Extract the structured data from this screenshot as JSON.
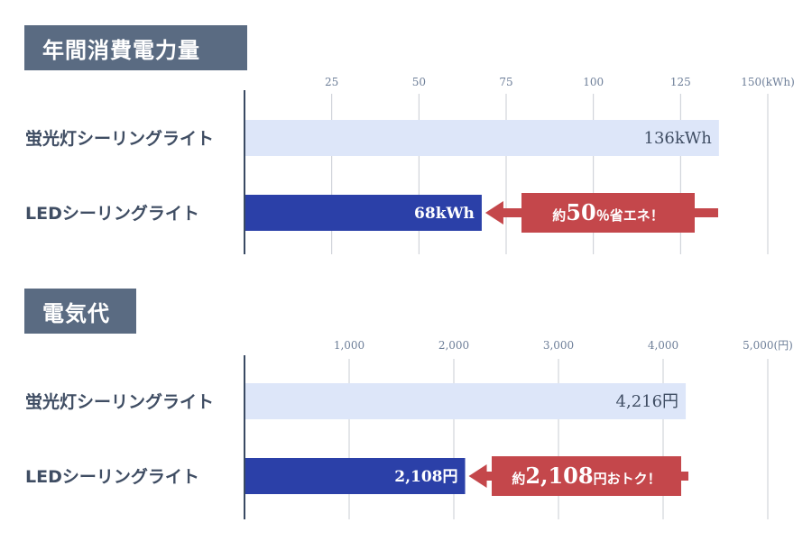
{
  "sections": [
    {
      "title": "年間消費電力量"
    },
    {
      "title": "電気代"
    }
  ],
  "colors": {
    "title_bg": "#5a6b82",
    "bar_light": "#dde6f9",
    "bar_dark": "#2b40a8",
    "callout": "#c4474b",
    "grid": "#c8ccd3",
    "axis": "#3a4a63"
  },
  "chart_data": [
    {
      "type": "bar",
      "orientation": "horizontal",
      "title": "年間消費電力量",
      "categories": [
        "蛍光灯シーリングライト",
        "LEDシーリングライト"
      ],
      "values": [
        136,
        68
      ],
      "value_labels": [
        "136kWh",
        "68kWh"
      ],
      "xlim": [
        0,
        150
      ],
      "ticks": [
        25,
        50,
        75,
        100,
        125,
        150
      ],
      "tick_labels": [
        "25",
        "50",
        "75",
        "100",
        "125",
        "150(kWh)"
      ],
      "grid": true,
      "callout": {
        "prefix": "約",
        "number": "50",
        "suffix": "％省エネ！"
      }
    },
    {
      "type": "bar",
      "orientation": "horizontal",
      "title": "電気代",
      "categories": [
        "蛍光灯シーリングライト",
        "LEDシーリングライト"
      ],
      "values": [
        4216,
        2108
      ],
      "value_labels": [
        "4,216円",
        "2,108円"
      ],
      "xlim": [
        0,
        5000
      ],
      "ticks": [
        1000,
        2000,
        3000,
        4000,
        5000
      ],
      "tick_labels": [
        "1,000",
        "2,000",
        "3,000",
        "4,000",
        "5,000(円)"
      ],
      "grid": true,
      "callout": {
        "prefix": "約",
        "number": "2,108",
        "suffix": "円おトク！"
      }
    }
  ]
}
